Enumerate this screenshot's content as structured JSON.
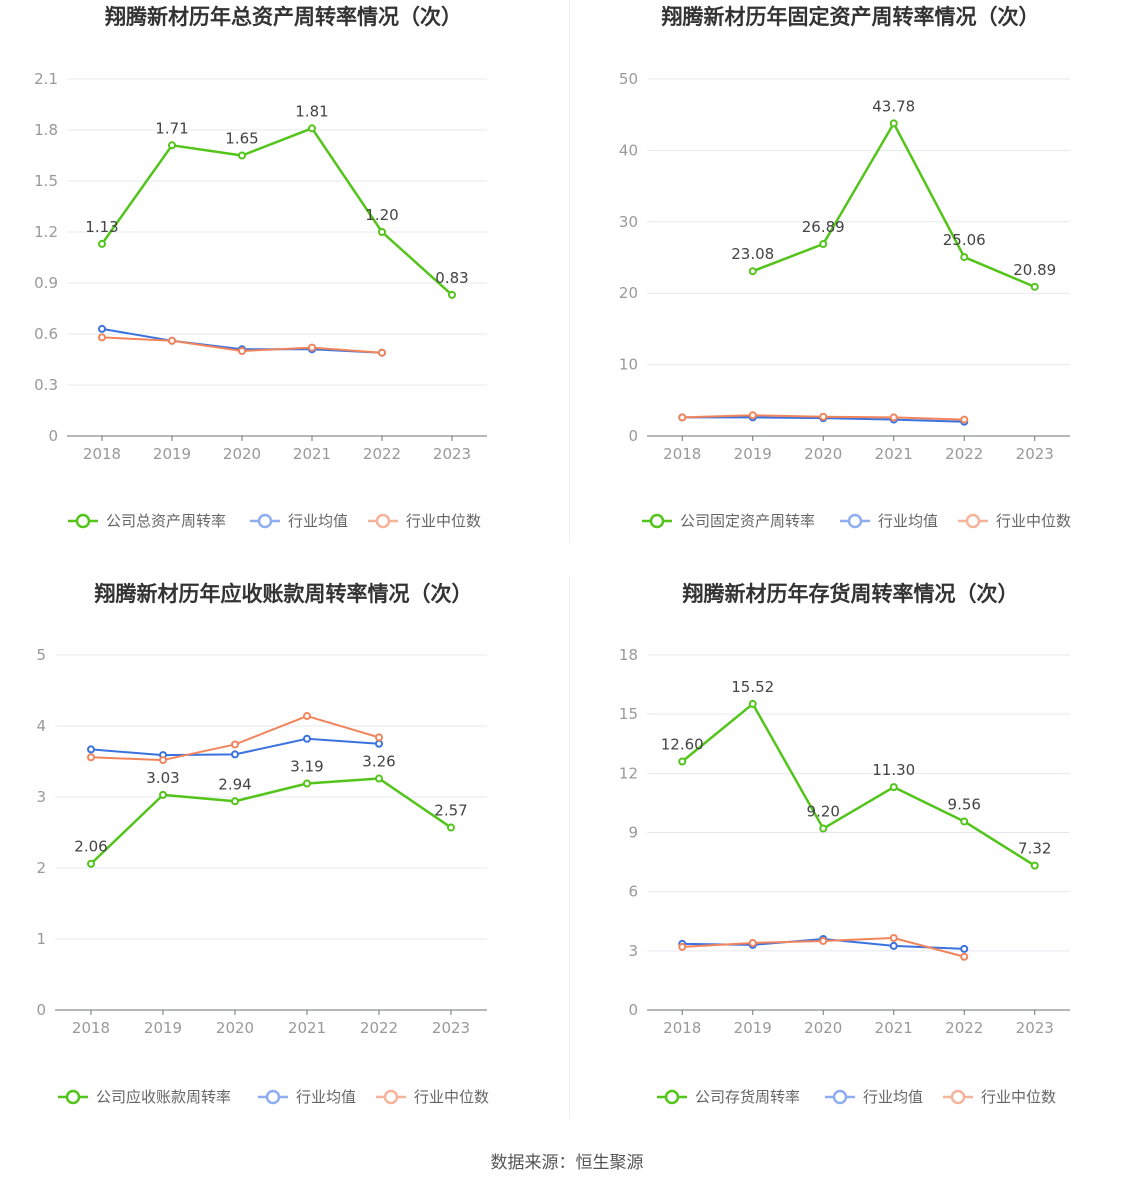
{
  "source_text": "数据来源：恒生聚源",
  "chart_data": [
    {
      "type": "line",
      "title": "翔腾新材历年总资产周转率情况（次）",
      "categories": [
        "2018",
        "2019",
        "2020",
        "2021",
        "2022",
        "2023"
      ],
      "ylim": [
        0,
        2.1
      ],
      "yticks": [
        "0",
        "0.3",
        "0.6",
        "0.9",
        "1.2",
        "1.5",
        "1.8",
        "2.1"
      ],
      "grid": true,
      "legend_position": "bottom",
      "series": [
        {
          "name": "公司总资产周转率",
          "color": "#52c41a",
          "values": [
            1.13,
            1.71,
            1.65,
            1.81,
            1.2,
            0.83
          ],
          "labels": [
            "1.13",
            "1.71",
            "1.65",
            "1.81",
            "1.20",
            "0.83"
          ]
        },
        {
          "name": "行业均值",
          "color": "#3a73e0",
          "values": [
            0.63,
            0.56,
            0.51,
            0.51,
            0.49,
            null
          ]
        },
        {
          "name": "行业中位数",
          "color": "#f2845c",
          "values": [
            0.58,
            0.56,
            0.5,
            0.52,
            0.49,
            null
          ]
        }
      ]
    },
    {
      "type": "line",
      "title": "翔腾新材历年固定资产周转率情况（次）",
      "categories": [
        "2018",
        "2019",
        "2020",
        "2021",
        "2022",
        "2023"
      ],
      "ylim": [
        0,
        50
      ],
      "yticks": [
        "0",
        "10",
        "20",
        "30",
        "40",
        "50"
      ],
      "grid": true,
      "legend_position": "bottom",
      "series": [
        {
          "name": "公司固定资产周转率",
          "color": "#52c41a",
          "values": [
            null,
            23.08,
            26.89,
            43.78,
            25.06,
            20.89
          ],
          "labels": [
            null,
            "23.08",
            "26.89",
            "43.78",
            "25.06",
            "20.89"
          ]
        },
        {
          "name": "行业均值",
          "color": "#3a73e0",
          "values": [
            2.6,
            2.6,
            2.5,
            2.3,
            2.0,
            null
          ]
        },
        {
          "name": "行业中位数",
          "color": "#f2845c",
          "values": [
            2.6,
            2.9,
            2.7,
            2.6,
            2.3,
            null
          ]
        }
      ]
    },
    {
      "type": "line",
      "title": "翔腾新材历年应收账款周转率情况（次）",
      "categories": [
        "2018",
        "2019",
        "2020",
        "2021",
        "2022",
        "2023"
      ],
      "ylim": [
        0,
        5
      ],
      "yticks": [
        "0",
        "1",
        "2",
        "3",
        "4",
        "5"
      ],
      "grid": true,
      "legend_position": "bottom",
      "series": [
        {
          "name": "公司应收账款周转率",
          "color": "#52c41a",
          "values": [
            2.06,
            3.03,
            2.94,
            3.19,
            3.26,
            2.57
          ],
          "labels": [
            "2.06",
            "3.03",
            "2.94",
            "3.19",
            "3.26",
            "2.57"
          ]
        },
        {
          "name": "行业均值",
          "color": "#3a73e0",
          "values": [
            3.67,
            3.59,
            3.6,
            3.82,
            3.75,
            null
          ]
        },
        {
          "name": "行业中位数",
          "color": "#f2845c",
          "values": [
            3.56,
            3.52,
            3.74,
            4.14,
            3.84,
            null
          ]
        }
      ]
    },
    {
      "type": "line",
      "title": "翔腾新材历年存货周转率情况（次）",
      "categories": [
        "2018",
        "2019",
        "2020",
        "2021",
        "2022",
        "2023"
      ],
      "ylim": [
        0,
        18
      ],
      "yticks": [
        "0",
        "3",
        "6",
        "9",
        "12",
        "15",
        "18"
      ],
      "grid": true,
      "legend_position": "bottom",
      "series": [
        {
          "name": "公司存货周转率",
          "color": "#52c41a",
          "values": [
            12.6,
            15.52,
            9.2,
            11.3,
            9.56,
            7.32
          ],
          "labels": [
            "12.60",
            "15.52",
            "9.20",
            "11.30",
            "9.56",
            "7.32"
          ]
        },
        {
          "name": "行业均值",
          "color": "#3a73e0",
          "values": [
            3.35,
            3.3,
            3.6,
            3.25,
            3.1,
            null
          ]
        },
        {
          "name": "行业中位数",
          "color": "#f2845c",
          "values": [
            3.2,
            3.4,
            3.5,
            3.65,
            2.7,
            null
          ]
        }
      ]
    }
  ]
}
